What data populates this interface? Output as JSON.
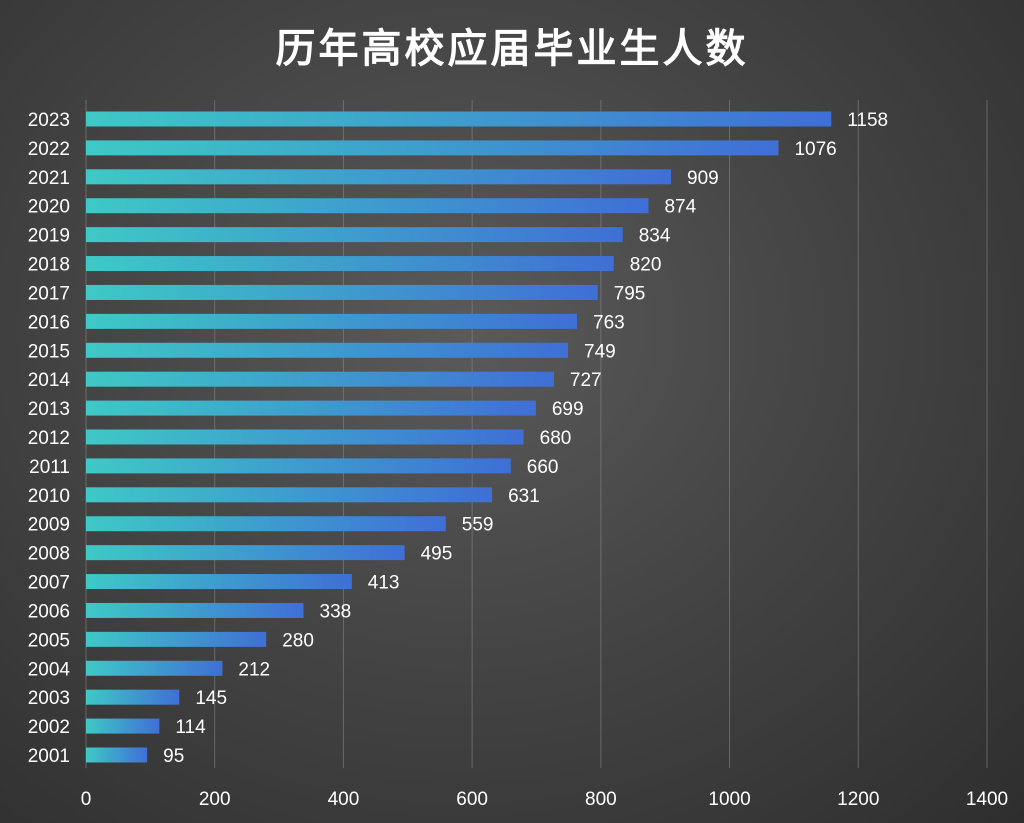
{
  "chart_data": {
    "type": "bar",
    "orientation": "horizontal",
    "title": "历年高校应届毕业生人数",
    "xlabel": "",
    "ylabel": "",
    "xlim": [
      0,
      1400
    ],
    "x_ticks": [
      "0",
      "200",
      "400",
      "600",
      "800",
      "1000",
      "1200",
      "1400"
    ],
    "grid": true,
    "categories": [
      "2023",
      "2022",
      "2021",
      "2020",
      "2019",
      "2018",
      "2017",
      "2016",
      "2015",
      "2014",
      "2013",
      "2012",
      "2011",
      "2010",
      "2009",
      "2008",
      "2007",
      "2006",
      "2005",
      "2004",
      "2003",
      "2002",
      "2001"
    ],
    "values": [
      1158,
      1076,
      909,
      874,
      834,
      820,
      795,
      763,
      749,
      727,
      699,
      680,
      660,
      631,
      559,
      495,
      413,
      338,
      280,
      212,
      145,
      114,
      95
    ],
    "colors": {
      "bar_start": "#3ec9c6",
      "bar_end": "#3f6fd6",
      "background": "#454545",
      "text": "#ffffff",
      "grid": "#8a8a8a"
    }
  }
}
